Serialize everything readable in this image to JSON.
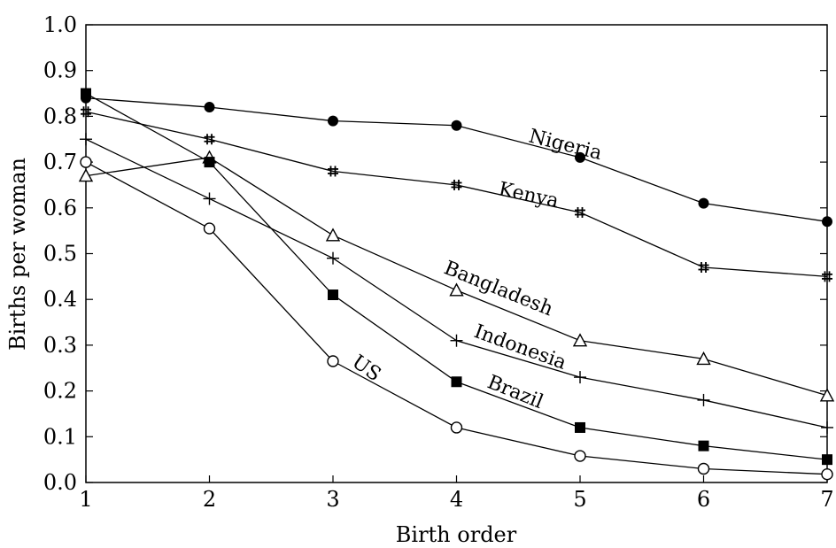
{
  "chart_data": {
    "type": "line",
    "title": "",
    "xlabel": "Birth order",
    "ylabel": "Births per woman",
    "xlim": [
      1,
      7
    ],
    "ylim": [
      0,
      1.0
    ],
    "x": [
      1,
      2,
      3,
      4,
      5,
      6,
      7
    ],
    "x_ticks": [
      "1",
      "2",
      "3",
      "4",
      "5",
      "6",
      "7"
    ],
    "y_ticks": [
      "0.0",
      "0.1",
      "0.2",
      "0.3",
      "0.4",
      "0.5",
      "0.6",
      "0.7",
      "0.8",
      "0.9",
      "1.0"
    ],
    "grid": false,
    "legend": "none (series labeled directly on lines)",
    "line_color": "#000000",
    "series": [
      {
        "name": "Nigeria",
        "marker": "filled-circle",
        "values": [
          0.84,
          0.82,
          0.79,
          0.78,
          0.71,
          0.61,
          0.57
        ]
      },
      {
        "name": "Kenya",
        "marker": "hash",
        "values": [
          0.81,
          0.75,
          0.68,
          0.65,
          0.59,
          0.47,
          0.45
        ]
      },
      {
        "name": "Bangladesh",
        "marker": "open-triangle",
        "values": [
          0.67,
          0.71,
          0.54,
          0.42,
          0.31,
          0.27,
          0.19
        ]
      },
      {
        "name": "Indonesia",
        "marker": "plus",
        "values": [
          0.75,
          0.62,
          0.49,
          0.31,
          0.23,
          0.18,
          0.12
        ]
      },
      {
        "name": "Brazil",
        "marker": "filled-square",
        "values": [
          0.85,
          0.7,
          0.41,
          0.22,
          0.12,
          0.08,
          0.05
        ]
      },
      {
        "name": "US",
        "marker": "open-circle",
        "values": [
          0.7,
          0.555,
          0.265,
          0.12,
          0.058,
          0.03,
          0.018
        ]
      }
    ]
  }
}
